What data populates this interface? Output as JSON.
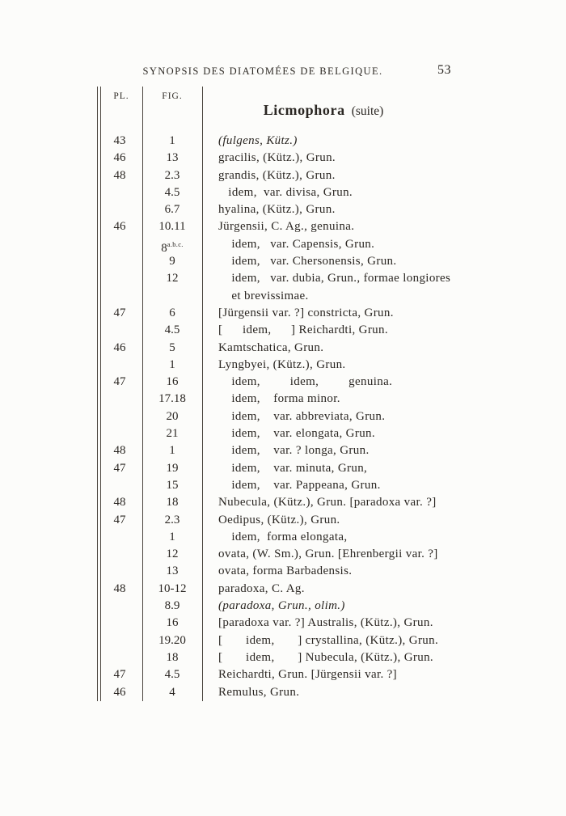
{
  "page": {
    "running_header": "SYNOPSIS DES DIATOMÉES DE BELGIQUE.",
    "page_number": "53"
  },
  "table": {
    "col_pl": "PL.",
    "col_fig": "FIG.",
    "title_genus": "Licmophora",
    "title_suffix": "(suite)",
    "rows": [
      {
        "pl": "43",
        "fig": "1",
        "name": "(fulgens, Kütz.)",
        "italic": true
      },
      {
        "pl": "46",
        "fig": "13",
        "name": "gracilis, (Kütz.), Grun."
      },
      {
        "pl": "48",
        "fig": "2.3",
        "name": "grandis, (Kütz.), Grun."
      },
      {
        "pl": "",
        "fig": "4.5",
        "name": "   idem,  var. divisa, Grun."
      },
      {
        "pl": "",
        "fig": "6.7",
        "name": "hyalina, (Kütz.), Grun."
      },
      {
        "pl": "46",
        "fig": "10.11",
        "name": "Jürgensii, C. Ag., genuina."
      },
      {
        "pl": "",
        "fig": "8",
        "fig_sup": "a.b.c.",
        "name": "    idem,   var. Capensis, Grun."
      },
      {
        "pl": "",
        "fig": "9",
        "name": "    idem,   var. Chersonensis, Grun."
      },
      {
        "pl": "",
        "fig": "12",
        "name": "    idem,   var. dubia, Grun., formae longiores\n    et brevissimae."
      },
      {
        "pl": "47",
        "fig": "6",
        "name": "[Jürgensii var. ?] constricta, Grun."
      },
      {
        "pl": "",
        "fig": "4.5",
        "name": "[      idem,      ] Reichardti, Grun."
      },
      {
        "pl": "46",
        "fig": "5",
        "name": "Kamtschatica, Grun."
      },
      {
        "pl": "",
        "fig": "1",
        "name": "Lyngbyei, (Kütz.), Grun."
      },
      {
        "pl": "47",
        "fig": "16",
        "name": "    idem,         idem,         genuina."
      },
      {
        "pl": "",
        "fig": "17.18",
        "name": "    idem,    forma minor."
      },
      {
        "pl": "",
        "fig": "20",
        "name": "    idem,    var. abbreviata, Grun."
      },
      {
        "pl": "",
        "fig": "21",
        "name": "    idem,    var. elongata, Grun."
      },
      {
        "pl": "48",
        "fig": "1",
        "name": "    idem,    var. ? longa, Grun."
      },
      {
        "pl": "47",
        "fig": "19",
        "name": "    idem,    var. minuta, Grun,"
      },
      {
        "pl": "",
        "fig": "15",
        "name": "    idem,    var. Pappeana, Grun."
      },
      {
        "pl": "48",
        "fig": "18",
        "name": "Nubecula, (Kütz.), Grun. [paradoxa var. ?]"
      },
      {
        "pl": "47",
        "fig": "2.3",
        "name": "Oedipus, (Kütz.), Grun."
      },
      {
        "pl": "",
        "fig": "1",
        "name": "    idem,  forma elongata,"
      },
      {
        "pl": "",
        "fig": "12",
        "name": "ovata, (W. Sm.), Grun. [Ehrenbergii var. ?]"
      },
      {
        "pl": "",
        "fig": "13",
        "name": "ovata, forma Barbadensis."
      },
      {
        "pl": "48",
        "fig": "10-12",
        "name": "paradoxa, C. Ag."
      },
      {
        "pl": "",
        "fig": "8.9",
        "name": "(paradoxa, Grun., olim.)",
        "italic": true
      },
      {
        "pl": "",
        "fig": "16",
        "name": "[paradoxa var. ?] Australis, (Kütz.), Grun."
      },
      {
        "pl": "",
        "fig": "19.20",
        "name": "[       idem,       ] crystallina, (Kütz.), Grun."
      },
      {
        "pl": "",
        "fig": "18",
        "name": "[       idem,       ] Nubecula, (Kütz.), Grun."
      },
      {
        "pl": "47",
        "fig": "4.5",
        "name": "Reichardti, Grun. [Jürgensii var. ?]"
      },
      {
        "pl": "46",
        "fig": "4",
        "name": "Remulus, Grun."
      }
    ]
  },
  "colors": {
    "paper": "#fcfcfa",
    "ink": "#2a2622",
    "rule": "#4a443d"
  }
}
